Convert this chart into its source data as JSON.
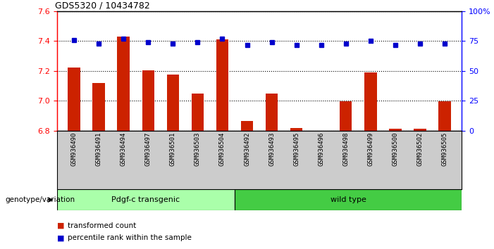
{
  "title": "GDS5320 / 10434782",
  "samples": [
    "GSM936490",
    "GSM936491",
    "GSM936494",
    "GSM936497",
    "GSM936501",
    "GSM936503",
    "GSM936504",
    "GSM936492",
    "GSM936493",
    "GSM936495",
    "GSM936496",
    "GSM936498",
    "GSM936499",
    "GSM936500",
    "GSM936502",
    "GSM936505"
  ],
  "transformed_count": [
    7.225,
    7.12,
    7.43,
    7.205,
    7.175,
    7.05,
    7.41,
    6.865,
    7.05,
    6.82,
    6.79,
    6.995,
    7.19,
    6.815,
    6.815,
    6.995
  ],
  "percentile_rank": [
    76,
    73,
    77,
    74,
    73,
    74,
    77,
    72,
    74,
    72,
    72,
    73,
    75,
    72,
    73,
    73
  ],
  "group1_label": "Pdgf-c transgenic",
  "group1_count": 7,
  "group2_label": "wild type",
  "group2_count": 9,
  "ylim_left": [
    6.8,
    7.6
  ],
  "ylim_right": [
    0,
    100
  ],
  "yticks_left": [
    6.8,
    7.0,
    7.2,
    7.4,
    7.6
  ],
  "yticks_right": [
    0,
    25,
    50,
    75,
    100
  ],
  "bar_color": "#cc2200",
  "dot_color": "#0000cc",
  "group1_color": "#aaffaa",
  "group2_color": "#44cc44",
  "sample_bg_color": "#cccccc",
  "genotype_label": "genotype/variation",
  "legend_bar": "transformed count",
  "legend_dot": "percentile rank within the sample",
  "bar_width": 0.5
}
